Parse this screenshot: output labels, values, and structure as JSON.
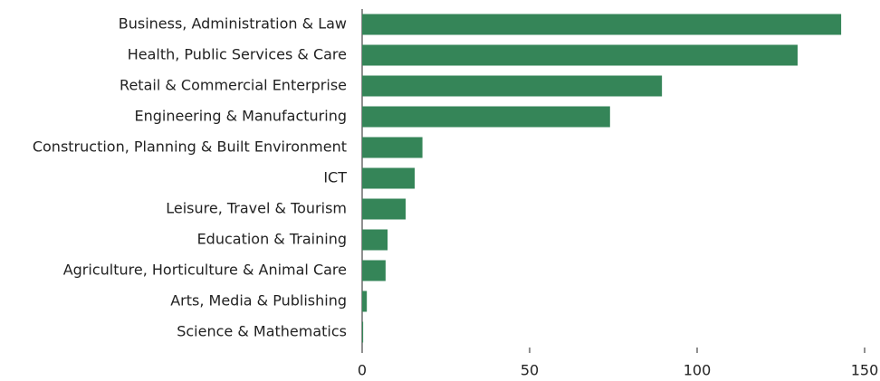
{
  "chart_data": {
    "type": "bar",
    "orientation": "horizontal",
    "categories": [
      "Business, Administration & Law",
      "Health, Public Services & Care",
      "Retail & Commercial Enterprise",
      "Engineering & Manufacturing",
      "Construction, Planning & Built Environment",
      "ICT",
      "Leisure, Travel & Tourism",
      "Education & Training",
      "Agriculture, Horticulture & Animal Care",
      "Arts, Media & Publishing",
      "Science & Mathematics"
    ],
    "values": [
      143,
      130,
      89.5,
      74,
      18,
      15.7,
      13,
      7.6,
      7,
      1.4,
      0.3
    ],
    "color": "#358558",
    "xlim": [
      0,
      150
    ],
    "xticks": [
      0,
      50,
      100,
      150
    ],
    "grid": false
  }
}
